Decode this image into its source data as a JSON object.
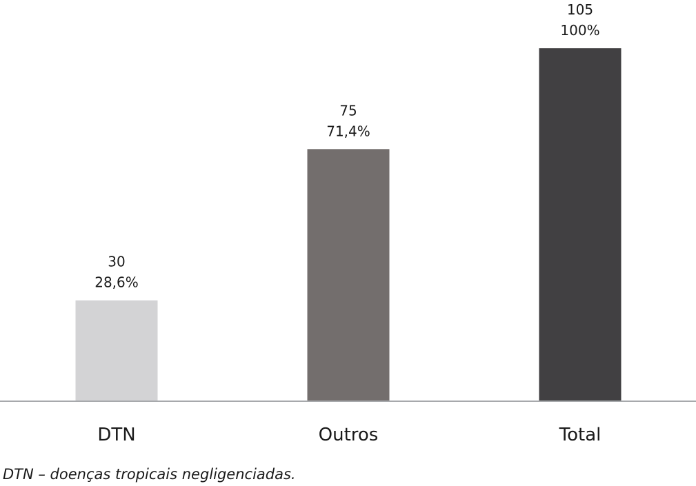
{
  "chart_data": {
    "type": "bar",
    "categories": [
      "DTN",
      "Outros",
      "Total"
    ],
    "values": [
      30,
      75,
      105
    ],
    "percent_labels": [
      "28,6%",
      "71,4%",
      "100%"
    ],
    "bar_colors": [
      "#d3d3d5",
      "#736e6d",
      "#414042"
    ],
    "axis_color": "#a7a9ac",
    "ylim": [
      0,
      105
    ],
    "grid": false,
    "legend": "none",
    "title": "",
    "xlabel": "",
    "ylabel": ""
  },
  "footnote": "DTN – doenças tropicais negligenciadas."
}
